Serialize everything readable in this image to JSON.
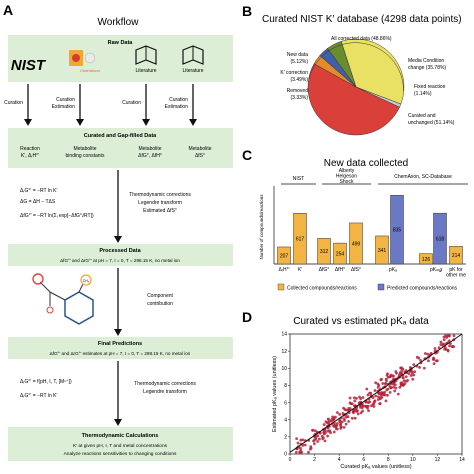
{
  "panel_a": {
    "letter": "A",
    "title": "Workflow",
    "raw_data": {
      "header": "Raw Data",
      "sources": [
        "NIST",
        "ChemAxon",
        "Literature",
        "Literature"
      ],
      "arrows": [
        "Curation",
        "Curation\nEstimation",
        "Curation",
        "Curation\nEstimation"
      ]
    },
    "curated": {
      "header": "Curated and Gap-filled Data",
      "columns": [
        "Reaction\nK′, ΔᵣH°′",
        "Metabolite\nbinding constants",
        "Metabolite\nΔfG°, ΔfH°",
        "Metabolite\nΔfS°"
      ]
    },
    "equations_1": [
      "ΔᵣG°′ = −RT ln K′",
      "ΔG = ΔH − TΔS",
      "ΔfG°′ = −RT ln(Σᵢ exp[−ΔfG°ᵢ/RT])"
    ],
    "corrections_1": [
      "Thermodynamic corrections",
      "Legendre transform",
      "Estimated ΔfS°"
    ],
    "processed": {
      "header": "Processed Data",
      "text": "ΔfG°′ and ΔrG°′ at pH = 7, I = 0, T = 298.15 K, no metal ion"
    },
    "component_label": "Component\ncontribution",
    "molecule_label": "CH₃",
    "final": {
      "header": "Final Predictions",
      "text": "ΔfG°′ and ΔrG°′ estimates at pH = 7, I = 0, T = 298.15 K, no metal ion"
    },
    "equations_2": [
      "ΔᵣG°′ = f(pH, I, T, [Mⁿ⁺])",
      "ΔᵣG°′ = −RT ln K′"
    ],
    "corrections_2": [
      "Thermodynamic corrections",
      "Legendre transform"
    ],
    "thermo": {
      "header": "Thermodynamic Calculations",
      "lines": [
        "K′ at given pH, I, T and metal concentrations",
        "Analyze reactions sensitivities to changing conditions"
      ]
    }
  },
  "panel_b": {
    "letter": "B",
    "title": "Curated NIST K′ database (4298 data points)",
    "labels": {
      "all": "All corrected data (48.86%)",
      "new": [
        "New data",
        "(5.12%)"
      ],
      "kcorr": [
        "K′ correction",
        "(3.49%)"
      ],
      "removed": [
        "Removed",
        "(3.33%)"
      ],
      "media": [
        "Media Condition",
        "change (35.78%)"
      ],
      "fixed": [
        "Fixed reaction",
        "(1.14%)"
      ],
      "unchanged": [
        "Curated and",
        "unchanged (51.14%)"
      ]
    },
    "colors": {
      "media": "#e9e163",
      "unchanged": "#d9403a",
      "new": "#6a8c2f",
      "kcorr": "#3f5fa8",
      "removed": "#e38a2b",
      "fixed": "#c9c9c9"
    }
  },
  "panel_c": {
    "letter": "C",
    "title": "New data collected",
    "groups": [
      "NIST",
      "Alberty\nHelgeson\nShock",
      "ChemAxon, SC-Database"
    ],
    "legend": [
      "Collected compounds/reactions",
      "Predicted compounds/reactions"
    ],
    "ylabel": "Number of compounds/reactions",
    "colors": {
      "collected": "#f2b443",
      "predicted": "#6b78c4"
    }
  },
  "panel_d": {
    "letter": "D",
    "title": "Curated vs estimated pKₐ data",
    "xlabel": "Curated pKₐ values (unitless)",
    "ylabel": "Estimated pKₐ values (unitless)",
    "color": "#b5223a"
  },
  "chart_data": [
    {
      "type": "pie",
      "title": "Curated NIST K′ database (4298 data points)",
      "slices": [
        {
          "label": "Media Condition change",
          "value": 35.78
        },
        {
          "label": "Fixed reaction",
          "value": 1.14
        },
        {
          "label": "Curated and unchanged",
          "value": 51.14
        },
        {
          "label": "Removed",
          "value": 3.33
        },
        {
          "label": "K′ correction",
          "value": 3.49
        },
        {
          "label": "New data",
          "value": 5.12
        }
      ]
    },
    {
      "type": "bar",
      "title": "New data collected",
      "ylabel": "Number of compounds/reactions",
      "ylim": [
        0,
        900
      ],
      "categories": [
        "ΔfH°",
        "K′",
        "ΔfG°",
        "ΔfH°",
        "ΔfS°",
        "pKₐ",
        "pKₘ𝑔",
        "pK for other metals"
      ],
      "bars": [
        {
          "category": "ΔfH°",
          "value": 207,
          "kind": "collected",
          "group": "NIST",
          "label": "ΔᵣH°′"
        },
        {
          "category": "K′",
          "value": 617,
          "kind": "collected",
          "group": "NIST",
          "label": "K′"
        },
        {
          "category": "ΔfG°",
          "value": 312,
          "kind": "collected",
          "group": "Alberty",
          "label": "ΔfG°"
        },
        {
          "category": "ΔfH°",
          "value": 254,
          "kind": "collected",
          "group": "Alberty",
          "label": "ΔfH°"
        },
        {
          "category": "ΔfS°",
          "value": 499,
          "kind": "collected",
          "group": "Alberty",
          "label": "ΔfS°"
        },
        {
          "category": "pKₐ",
          "value": 341,
          "kind": "collected",
          "group": "ChemAxon",
          "label": ""
        },
        {
          "category": "pKₐ",
          "value": 835,
          "kind": "predicted",
          "group": "ChemAxon",
          "label": "pKₐ"
        },
        {
          "category": "pKₘ𝑔",
          "value": 126,
          "kind": "collected",
          "group": "ChemAxon",
          "label": ""
        },
        {
          "category": "pKₘ𝑔",
          "value": 618,
          "kind": "predicted",
          "group": "ChemAxon",
          "label": "pKₘ𝑔"
        },
        {
          "category": "pK for other metals",
          "value": 214,
          "kind": "collected",
          "group": "ChemAxon",
          "label": "pK for\nother me"
        }
      ]
    },
    {
      "type": "scatter",
      "title": "Curated vs estimated pKₐ data",
      "xlabel": "Curated pKₐ values (unitless)",
      "ylabel": "Estimated pKₐ values (unitless)",
      "xlim": [
        0,
        14
      ],
      "ylim": [
        0,
        14
      ],
      "xticks": [
        0,
        2,
        4,
        6,
        8,
        10,
        12,
        14
      ],
      "yticks": [
        0,
        2,
        4,
        6,
        8,
        10,
        12,
        14
      ],
      "fit_line": {
        "x": [
          0,
          14
        ],
        "y": [
          0.2,
          14
        ]
      },
      "n_points": 360
    }
  ]
}
